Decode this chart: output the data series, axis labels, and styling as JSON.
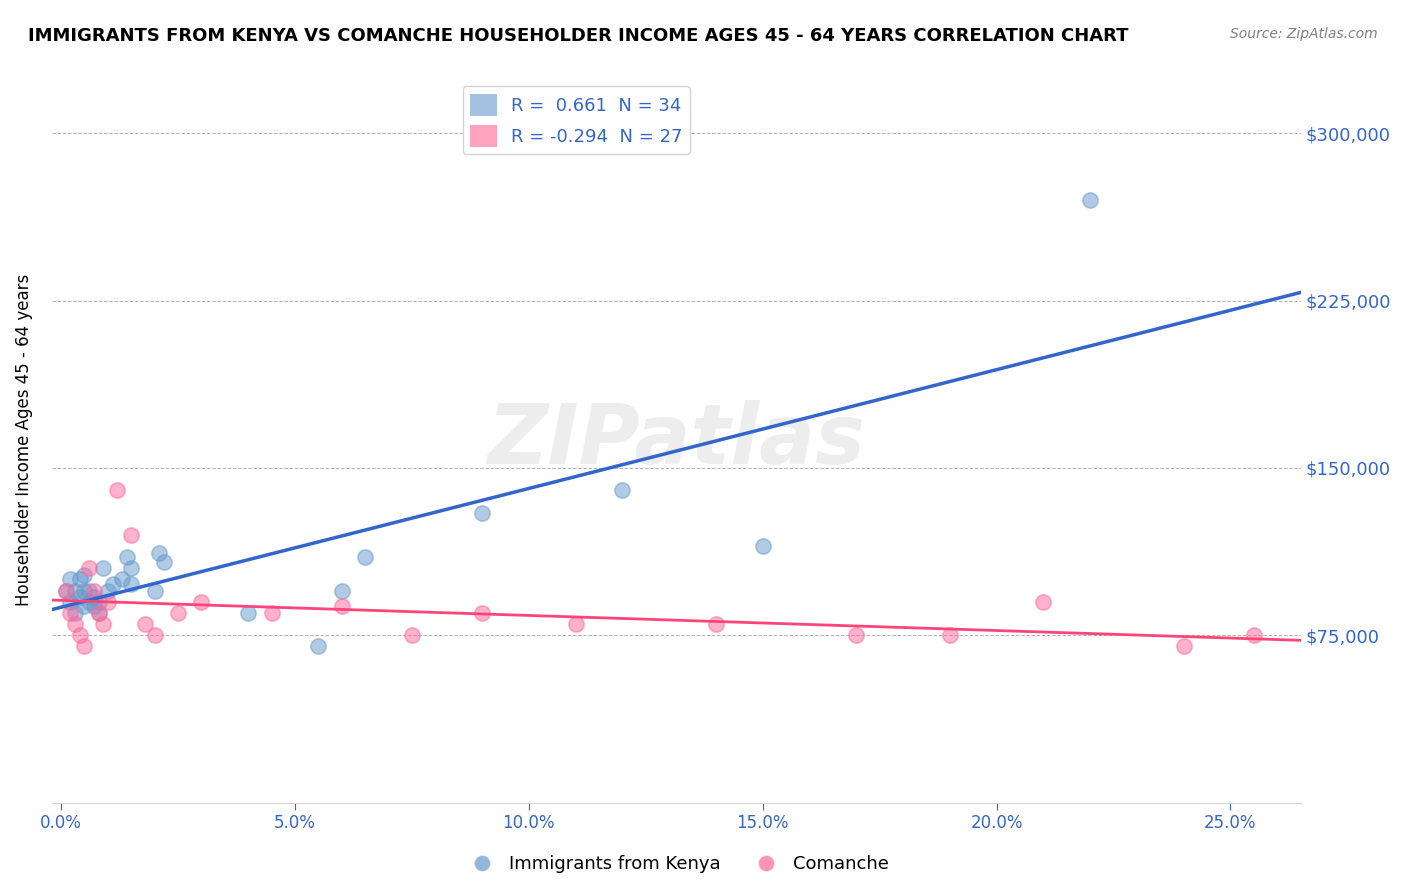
{
  "title": "IMMIGRANTS FROM KENYA VS COMANCHE HOUSEHOLDER INCOME AGES 45 - 64 YEARS CORRELATION CHART",
  "source": "Source: ZipAtlas.com",
  "ylabel": "Householder Income Ages 45 - 64 years",
  "xlabel_ticks": [
    0.0,
    0.05,
    0.1,
    0.15,
    0.2,
    0.25
  ],
  "xlabel_labels": [
    "0.0%",
    "5.0%",
    "10.0%",
    "15.0%",
    "20.0%",
    "25.0%"
  ],
  "ylim": [
    0,
    325000
  ],
  "xlim": [
    -0.002,
    0.265
  ],
  "ytick_positions": [
    75000,
    150000,
    225000,
    300000
  ],
  "ytick_labels": [
    "$75,000",
    "$150,000",
    "$225,000",
    "$300,000"
  ],
  "legend_entries": [
    {
      "label": "R =  0.661  N = 34",
      "color": "#6699cc"
    },
    {
      "label": "R = -0.294  N = 27",
      "color": "#ff6699"
    }
  ],
  "blue_color": "#6699cc",
  "pink_color": "#ff6699",
  "blue_line_color": "#3366cc",
  "pink_line_color": "#ff4477",
  "watermark": "ZIPatlas",
  "blue_R": 0.661,
  "blue_N": 34,
  "pink_R": -0.294,
  "pink_N": 27,
  "blue_scatter_x": [
    0.001,
    0.002,
    0.002,
    0.003,
    0.003,
    0.004,
    0.004,
    0.005,
    0.005,
    0.005,
    0.006,
    0.006,
    0.007,
    0.007,
    0.008,
    0.008,
    0.009,
    0.01,
    0.011,
    0.013,
    0.014,
    0.015,
    0.015,
    0.02,
    0.021,
    0.022,
    0.04,
    0.055,
    0.06,
    0.065,
    0.09,
    0.12,
    0.15,
    0.22
  ],
  "blue_scatter_y": [
    95000,
    100000,
    90000,
    85000,
    95000,
    100000,
    92000,
    88000,
    95000,
    102000,
    90000,
    95000,
    88000,
    92000,
    85000,
    90000,
    105000,
    95000,
    98000,
    100000,
    110000,
    105000,
    98000,
    95000,
    112000,
    108000,
    85000,
    70000,
    95000,
    110000,
    130000,
    140000,
    115000,
    270000
  ],
  "pink_scatter_x": [
    0.001,
    0.002,
    0.003,
    0.004,
    0.005,
    0.006,
    0.007,
    0.008,
    0.009,
    0.01,
    0.012,
    0.015,
    0.018,
    0.02,
    0.025,
    0.03,
    0.045,
    0.06,
    0.075,
    0.09,
    0.11,
    0.14,
    0.17,
    0.19,
    0.21,
    0.24,
    0.255
  ],
  "pink_scatter_y": [
    95000,
    85000,
    80000,
    75000,
    70000,
    105000,
    95000,
    85000,
    80000,
    90000,
    140000,
    120000,
    80000,
    75000,
    85000,
    90000,
    85000,
    88000,
    75000,
    85000,
    80000,
    80000,
    75000,
    75000,
    90000,
    70000,
    75000
  ]
}
